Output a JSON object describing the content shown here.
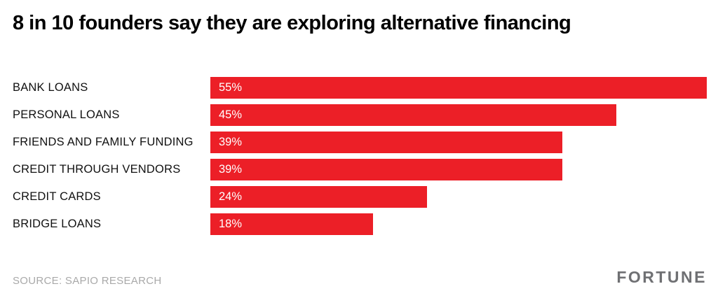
{
  "page": {
    "title": "8 in 10 founders say they are exploring alternative financing",
    "source": "SOURCE: SAPIO RESEARCH",
    "brand": "FORTUNE"
  },
  "colors": {
    "bar": "#ec1f27",
    "value_text": "#ffffff",
    "title_text": "#000000",
    "source_text": "#a9a9a9",
    "brand_text": "#6f7073",
    "background": "#ffffff"
  },
  "chart_data": {
    "type": "bar",
    "orientation": "horizontal",
    "title": "8 in 10 founders say they are exploring alternative financing",
    "categories": [
      "BANK LOANS",
      "PERSONAL LOANS",
      "FRIENDS AND FAMILY FUNDING",
      "CREDIT THROUGH VENDORS",
      "CREDIT CARDS",
      "BRIDGE LOANS"
    ],
    "values": [
      55,
      45,
      39,
      39,
      24,
      18
    ],
    "value_labels": [
      "55%",
      "45%",
      "39%",
      "39%",
      "24%",
      "18%"
    ],
    "xlabel": "",
    "ylabel": "",
    "xlim": [
      0,
      55
    ],
    "grid": false,
    "legend": false,
    "value_label_position": "inside-left",
    "source": "SOURCE: SAPIO RESEARCH"
  }
}
